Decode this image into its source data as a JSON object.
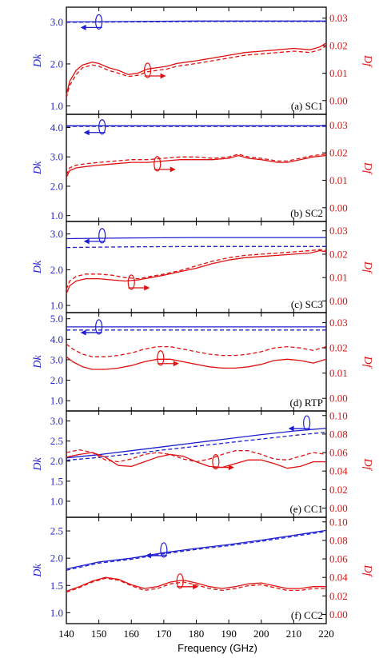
{
  "figure": {
    "xlabel": "Frequency  (GHz)",
    "x_ticks": [
      140,
      150,
      160,
      170,
      180,
      190,
      200,
      210,
      220
    ],
    "left_label": "Dk",
    "right_label": "Df",
    "colors": {
      "dk": "#1f1fd0",
      "df": "#e01010",
      "frame": "#000000"
    }
  },
  "chart_data": [
    {
      "type": "line",
      "label": "(a) SC1",
      "x_range": [
        140,
        220
      ],
      "dk_range": [
        0.8,
        3.35
      ],
      "dk_ticks": [
        1.0,
        2.0,
        3.0
      ],
      "df_range": [
        -0.005,
        0.034
      ],
      "df_ticks": [
        0.0,
        0.01,
        0.02,
        0.03
      ],
      "dk_arrow": {
        "x": 150,
        "y": 3.0
      },
      "df_arrow": {
        "x": 165,
        "y": 0.011
      },
      "series": [
        {
          "axis": "dk",
          "style": "solid",
          "x": [
            140,
            160,
            180,
            200,
            220
          ],
          "y": [
            3.0,
            3.01,
            3.02,
            3.02,
            3.02
          ]
        },
        {
          "axis": "dk",
          "style": "dashed",
          "x": [
            140,
            160,
            180,
            200,
            220
          ],
          "y": [
            2.99,
            3.0,
            3.01,
            3.01,
            3.01
          ]
        },
        {
          "axis": "df",
          "style": "solid",
          "x": [
            140,
            141,
            143,
            145,
            148,
            150,
            153,
            156,
            159,
            162,
            165,
            168,
            171,
            174,
            177,
            180,
            185,
            190,
            195,
            200,
            205,
            210,
            215,
            218,
            220
          ],
          "y": [
            0.002,
            0.007,
            0.011,
            0.013,
            0.014,
            0.0135,
            0.012,
            0.011,
            0.0095,
            0.01,
            0.0115,
            0.012,
            0.0125,
            0.0135,
            0.014,
            0.0145,
            0.0155,
            0.0165,
            0.0175,
            0.018,
            0.0185,
            0.019,
            0.0185,
            0.0195,
            0.021
          ]
        },
        {
          "axis": "df",
          "style": "dashed",
          "x": [
            140,
            141,
            143,
            145,
            148,
            150,
            153,
            156,
            159,
            162,
            165,
            168,
            171,
            174,
            177,
            180,
            185,
            190,
            195,
            200,
            205,
            210,
            215,
            218,
            220
          ],
          "y": [
            0.001,
            0.0055,
            0.0095,
            0.012,
            0.013,
            0.0125,
            0.011,
            0.01,
            0.0088,
            0.0092,
            0.0105,
            0.011,
            0.0115,
            0.0125,
            0.013,
            0.0135,
            0.0145,
            0.0155,
            0.0165,
            0.017,
            0.0175,
            0.018,
            0.0175,
            0.0185,
            0.02
          ]
        }
      ]
    },
    {
      "type": "line",
      "label": "(b) SC2",
      "x_range": [
        140,
        220
      ],
      "dk_range": [
        0.8,
        4.45
      ],
      "dk_ticks": [
        1.0,
        2.0,
        3.0,
        4.0
      ],
      "df_range": [
        -0.005,
        0.034
      ],
      "df_ticks": [
        0.0,
        0.01,
        0.02,
        0.03
      ],
      "dk_arrow": {
        "x": 151,
        "y": 4.02
      },
      "df_arrow": {
        "x": 168,
        "y": 0.016
      },
      "series": [
        {
          "axis": "dk",
          "style": "solid",
          "x": [
            140,
            160,
            180,
            200,
            220
          ],
          "y": [
            4.06,
            4.06,
            4.06,
            4.06,
            4.06
          ]
        },
        {
          "axis": "dk",
          "style": "dashed",
          "x": [
            140,
            160,
            180,
            200,
            220
          ],
          "y": [
            4.04,
            4.04,
            4.04,
            4.04,
            4.04
          ]
        },
        {
          "axis": "df",
          "style": "solid",
          "x": [
            140,
            141,
            143,
            146,
            150,
            155,
            160,
            165,
            170,
            175,
            180,
            185,
            190,
            193,
            196,
            200,
            205,
            208,
            212,
            216,
            220
          ],
          "y": [
            0.011,
            0.0135,
            0.0145,
            0.015,
            0.0155,
            0.016,
            0.0165,
            0.0165,
            0.017,
            0.0175,
            0.0175,
            0.0175,
            0.018,
            0.019,
            0.018,
            0.0175,
            0.0165,
            0.0165,
            0.0175,
            0.0185,
            0.019
          ]
        },
        {
          "axis": "df",
          "style": "dashed",
          "x": [
            140,
            141,
            143,
            146,
            150,
            155,
            160,
            165,
            170,
            175,
            180,
            185,
            190,
            193,
            196,
            200,
            205,
            208,
            212,
            216,
            220
          ],
          "y": [
            0.012,
            0.0145,
            0.0155,
            0.016,
            0.0165,
            0.017,
            0.0175,
            0.0175,
            0.018,
            0.0185,
            0.0185,
            0.018,
            0.0185,
            0.0195,
            0.0185,
            0.018,
            0.017,
            0.017,
            0.018,
            0.019,
            0.0195
          ]
        }
      ]
    },
    {
      "type": "line",
      "label": "(c) SC3",
      "x_range": [
        140,
        220
      ],
      "dk_range": [
        0.8,
        3.35
      ],
      "dk_ticks": [
        1.0,
        2.0,
        3.0
      ],
      "df_range": [
        -0.005,
        0.034
      ],
      "df_ticks": [
        0.0,
        0.01,
        0.02,
        0.03
      ],
      "dk_arrow": {
        "x": 151,
        "y": 2.95
      },
      "df_arrow": {
        "x": 160,
        "y": 0.008
      },
      "series": [
        {
          "axis": "dk",
          "style": "solid",
          "x": [
            140,
            160,
            180,
            200,
            220
          ],
          "y": [
            2.87,
            2.89,
            2.9,
            2.9,
            2.9
          ]
        },
        {
          "axis": "dk",
          "style": "dashed",
          "x": [
            140,
            160,
            180,
            200,
            220
          ],
          "y": [
            2.62,
            2.64,
            2.65,
            2.65,
            2.65
          ]
        },
        {
          "axis": "df",
          "style": "solid",
          "x": [
            140,
            141,
            143,
            146,
            150,
            154,
            158,
            162,
            166,
            170,
            175,
            180,
            185,
            190,
            195,
            200,
            205,
            210,
            215,
            218,
            220
          ],
          "y": [
            0.003,
            0.0065,
            0.0085,
            0.0095,
            0.0095,
            0.009,
            0.0085,
            0.009,
            0.01,
            0.011,
            0.0125,
            0.014,
            0.016,
            0.0175,
            0.0185,
            0.019,
            0.0195,
            0.02,
            0.0205,
            0.0215,
            0.021
          ]
        },
        {
          "axis": "df",
          "style": "dashed",
          "x": [
            140,
            141,
            143,
            146,
            150,
            154,
            158,
            162,
            166,
            170,
            175,
            180,
            185,
            190,
            195,
            200,
            205,
            210,
            215,
            218,
            220
          ],
          "y": [
            0.005,
            0.0085,
            0.0105,
            0.0115,
            0.0115,
            0.011,
            0.01,
            0.0095,
            0.0105,
            0.0115,
            0.013,
            0.015,
            0.017,
            0.0185,
            0.0195,
            0.02,
            0.0205,
            0.021,
            0.0215,
            0.022,
            0.0215
          ]
        }
      ]
    },
    {
      "type": "line",
      "label": "(d) RTP",
      "x_range": [
        140,
        220
      ],
      "dk_range": [
        0.5,
        5.3
      ],
      "dk_ticks": [
        1.0,
        2.0,
        3.0,
        4.0,
        5.0
      ],
      "df_range": [
        -0.005,
        0.034
      ],
      "df_ticks": [
        0.0,
        0.01,
        0.02,
        0.03
      ],
      "dk_arrow": {
        "x": 150,
        "y": 4.6
      },
      "df_arrow": {
        "x": 169,
        "y": 0.016
      },
      "series": [
        {
          "axis": "dk",
          "style": "solid",
          "x": [
            140,
            160,
            180,
            200,
            220
          ],
          "y": [
            4.6,
            4.6,
            4.6,
            4.6,
            4.6
          ]
        },
        {
          "axis": "dk",
          "style": "dashed",
          "x": [
            140,
            160,
            180,
            200,
            220
          ],
          "y": [
            4.45,
            4.45,
            4.45,
            4.45,
            4.45
          ]
        },
        {
          "axis": "df",
          "style": "solid",
          "x": [
            140,
            142,
            145,
            148,
            152,
            156,
            160,
            164,
            168,
            172,
            176,
            180,
            184,
            188,
            192,
            196,
            200,
            204,
            208,
            212,
            216,
            220
          ],
          "y": [
            0.0165,
            0.0145,
            0.0125,
            0.0115,
            0.0115,
            0.012,
            0.013,
            0.0145,
            0.0155,
            0.0155,
            0.0145,
            0.0135,
            0.0125,
            0.012,
            0.012,
            0.0125,
            0.0135,
            0.015,
            0.0155,
            0.015,
            0.014,
            0.0155
          ]
        },
        {
          "axis": "df",
          "style": "dashed",
          "x": [
            140,
            142,
            145,
            148,
            152,
            156,
            160,
            164,
            168,
            172,
            176,
            180,
            184,
            188,
            192,
            196,
            200,
            204,
            208,
            212,
            216,
            220
          ],
          "y": [
            0.0215,
            0.0195,
            0.0175,
            0.0165,
            0.0165,
            0.017,
            0.018,
            0.0195,
            0.0205,
            0.0205,
            0.0195,
            0.0185,
            0.0175,
            0.017,
            0.017,
            0.0175,
            0.0185,
            0.02,
            0.0205,
            0.02,
            0.019,
            0.0205
          ]
        }
      ]
    },
    {
      "type": "line",
      "label": "(e) CC1",
      "x_range": [
        140,
        220
      ],
      "dk_range": [
        0.6,
        3.25
      ],
      "dk_ticks": [
        1.0,
        1.5,
        2.0,
        2.5,
        3.0
      ],
      "df_range": [
        -0.01,
        0.105
      ],
      "df_ticks": [
        0.0,
        0.02,
        0.04,
        0.06,
        0.08,
        0.1
      ],
      "dk_arrow": {
        "x": 214,
        "y": 2.95
      },
      "df_arrow": {
        "x": 186,
        "y": 0.05
      },
      "series": [
        {
          "axis": "dk",
          "style": "solid",
          "x": [
            140,
            150,
            160,
            170,
            180,
            190,
            200,
            210,
            220
          ],
          "y": [
            2.08,
            2.16,
            2.26,
            2.36,
            2.46,
            2.56,
            2.66,
            2.75,
            2.82
          ]
        },
        {
          "axis": "dk",
          "style": "dashed",
          "x": [
            140,
            150,
            160,
            170,
            180,
            190,
            200,
            210,
            220
          ],
          "y": [
            2.02,
            2.09,
            2.18,
            2.28,
            2.37,
            2.46,
            2.55,
            2.64,
            2.72
          ]
        },
        {
          "axis": "df",
          "style": "solid",
          "x": [
            140,
            144,
            148,
            152,
            156,
            160,
            164,
            168,
            172,
            176,
            180,
            184,
            188,
            192,
            196,
            200,
            204,
            208,
            212,
            216,
            220
          ],
          "y": [
            0.055,
            0.058,
            0.06,
            0.055,
            0.046,
            0.045,
            0.05,
            0.055,
            0.058,
            0.056,
            0.05,
            0.045,
            0.044,
            0.048,
            0.052,
            0.052,
            0.048,
            0.043,
            0.045,
            0.05,
            0.05
          ]
        },
        {
          "axis": "df",
          "style": "dashed",
          "x": [
            140,
            144,
            148,
            152,
            156,
            160,
            164,
            168,
            172,
            176,
            180,
            184,
            188,
            192,
            196,
            200,
            204,
            208,
            212,
            216,
            220
          ],
          "y": [
            0.06,
            0.063,
            0.06,
            0.052,
            0.05,
            0.053,
            0.058,
            0.06,
            0.058,
            0.053,
            0.05,
            0.053,
            0.058,
            0.062,
            0.062,
            0.058,
            0.053,
            0.052,
            0.056,
            0.06,
            0.058
          ]
        }
      ]
    },
    {
      "type": "line",
      "label": "(f) CC2",
      "x_range": [
        140,
        220
      ],
      "dk_range": [
        0.8,
        2.75
      ],
      "dk_ticks": [
        1.0,
        1.5,
        2.0,
        2.5
      ],
      "df_range": [
        -0.01,
        0.105
      ],
      "df_ticks": [
        0.0,
        0.02,
        0.04,
        0.06,
        0.08,
        0.1
      ],
      "dk_arrow": {
        "x": 170,
        "y": 2.15
      },
      "df_arrow": {
        "x": 175,
        "y": 0.036
      },
      "series": [
        {
          "axis": "dk",
          "style": "solid",
          "x": [
            140,
            150,
            160,
            170,
            180,
            190,
            200,
            210,
            220
          ],
          "y": [
            1.8,
            1.93,
            2.0,
            2.1,
            2.18,
            2.25,
            2.33,
            2.42,
            2.51
          ]
        },
        {
          "axis": "dk",
          "style": "dashed",
          "x": [
            140,
            150,
            160,
            170,
            180,
            190,
            200,
            210,
            220
          ],
          "y": [
            1.78,
            1.91,
            1.98,
            2.08,
            2.16,
            2.23,
            2.31,
            2.4,
            2.49
          ]
        },
        {
          "axis": "df",
          "style": "solid",
          "x": [
            140,
            144,
            148,
            152,
            156,
            160,
            164,
            168,
            172,
            176,
            180,
            184,
            188,
            192,
            196,
            200,
            204,
            208,
            212,
            216,
            220
          ],
          "y": [
            0.025,
            0.03,
            0.036,
            0.04,
            0.038,
            0.032,
            0.028,
            0.03,
            0.035,
            0.037,
            0.034,
            0.03,
            0.028,
            0.03,
            0.033,
            0.034,
            0.031,
            0.028,
            0.028,
            0.03,
            0.03
          ]
        },
        {
          "axis": "df",
          "style": "dashed",
          "x": [
            140,
            144,
            148,
            152,
            156,
            160,
            164,
            168,
            172,
            176,
            180,
            184,
            188,
            192,
            196,
            200,
            204,
            208,
            212,
            216,
            220
          ],
          "y": [
            0.024,
            0.029,
            0.035,
            0.039,
            0.037,
            0.031,
            0.026,
            0.028,
            0.033,
            0.035,
            0.032,
            0.028,
            0.026,
            0.028,
            0.031,
            0.032,
            0.029,
            0.026,
            0.026,
            0.028,
            0.028
          ]
        }
      ]
    }
  ]
}
